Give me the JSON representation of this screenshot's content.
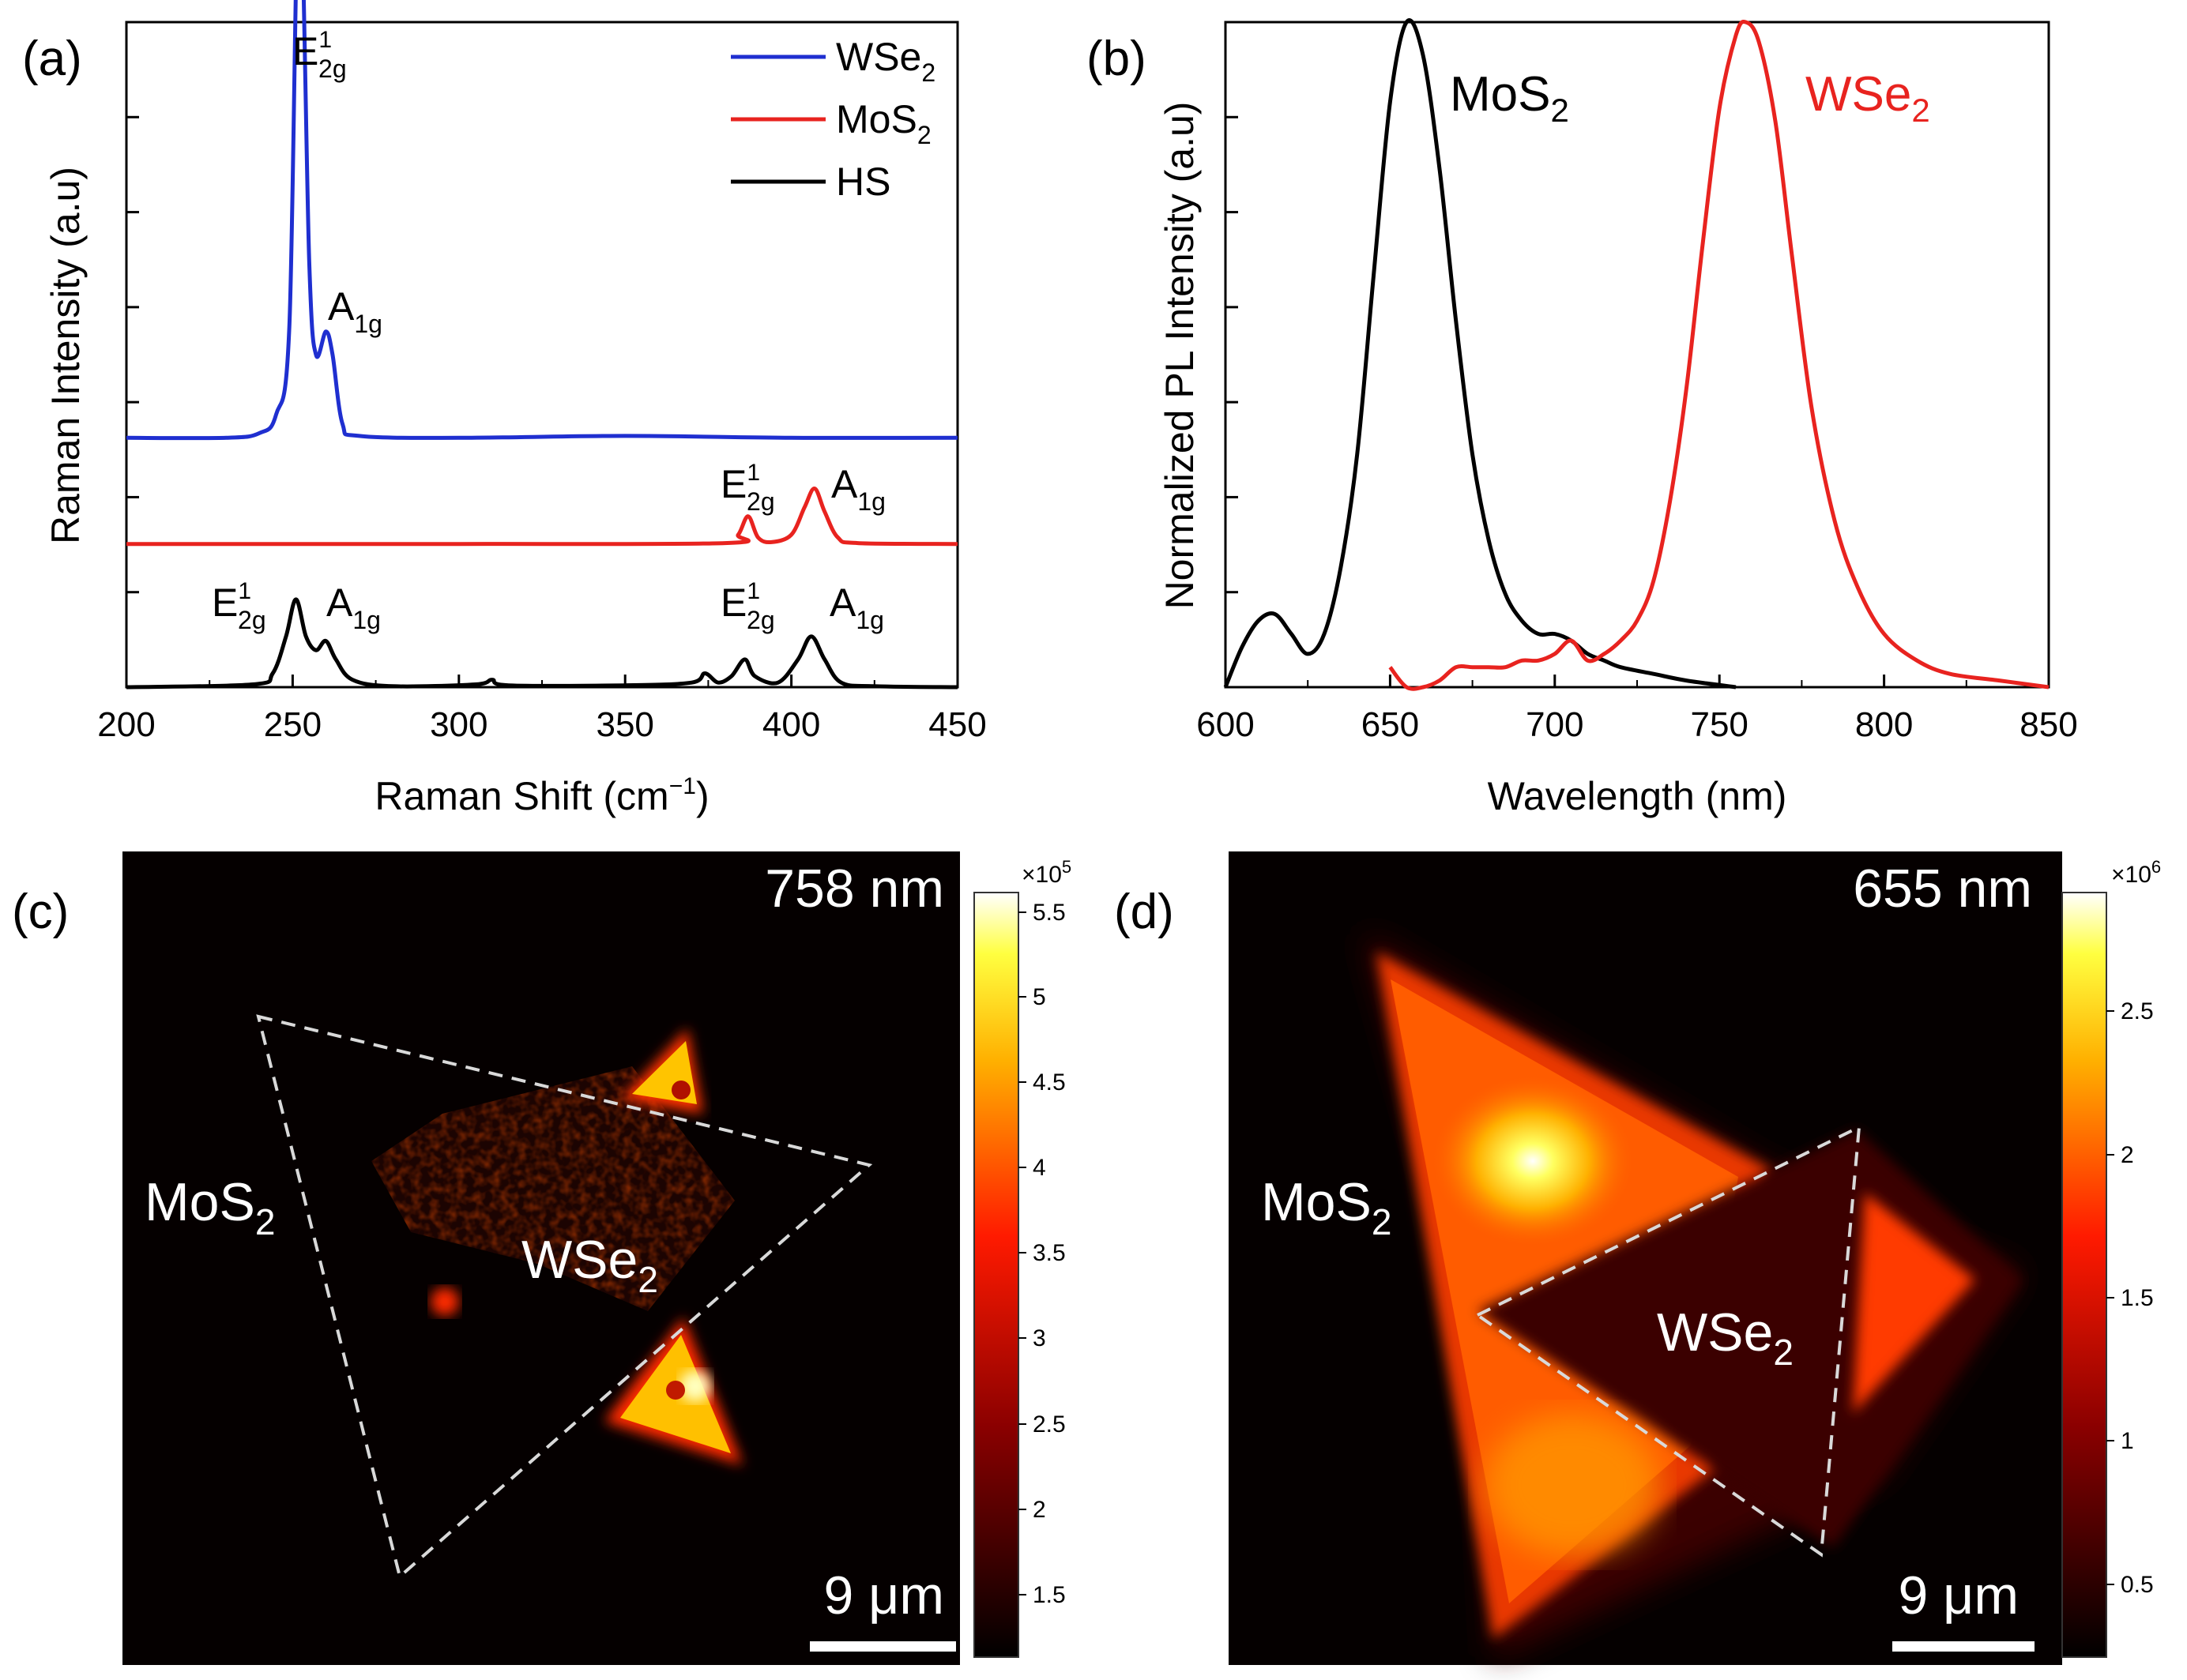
{
  "panels": {
    "a": "(a)",
    "b": "(b)",
    "c": "(c)",
    "d": "(d)"
  },
  "chart_data": [
    {
      "id": "a",
      "type": "line",
      "title": "",
      "xlabel": "Raman Shift (cm",
      "xlabel_sup": "−1",
      "xlabel_end": ")",
      "ylabel": "Raman Intensity (a.u)",
      "xlim": [
        200,
        450
      ],
      "ylim": [
        0,
        7.2
      ],
      "xticks": [
        200,
        250,
        300,
        350,
        400,
        450
      ],
      "series": [
        {
          "name": "WSe",
          "name_sub": "2",
          "color": "#1f2fd0",
          "baseline": 2.7,
          "peaks": [
            [
              252,
              6.1,
              2.2
            ],
            [
              261,
              1.1,
              3.0
            ]
          ],
          "points": [
            [
              200,
              2.7
            ],
            [
              230,
              2.7
            ],
            [
              240,
              2.75
            ],
            [
              245,
              2.95
            ],
            [
              249,
              3.9
            ],
            [
              252,
              8.8
            ],
            [
              255,
              4.6
            ],
            [
              257,
              3.6
            ],
            [
              260,
              3.85
            ],
            [
              262,
              3.6
            ],
            [
              265,
              2.85
            ],
            [
              270,
              2.72
            ],
            [
              300,
              2.7
            ],
            [
              350,
              2.72
            ],
            [
              400,
              2.7
            ],
            [
              450,
              2.7
            ]
          ]
        },
        {
          "name": "MoS",
          "name_sub": "2",
          "color": "#e8231f",
          "baseline": 1.55,
          "points": [
            [
              200,
              1.55
            ],
            [
              300,
              1.55
            ],
            [
              380,
              1.56
            ],
            [
              384,
              1.65
            ],
            [
              387,
              1.85
            ],
            [
              390,
              1.62
            ],
            [
              394,
              1.57
            ],
            [
              400,
              1.65
            ],
            [
              404,
              1.95
            ],
            [
              407,
              2.15
            ],
            [
              410,
              1.9
            ],
            [
              414,
              1.62
            ],
            [
              420,
              1.56
            ],
            [
              450,
              1.55
            ]
          ]
        },
        {
          "name": "HS",
          "color": "#000000",
          "baseline": 0.0,
          "points": [
            [
              200,
              0.0
            ],
            [
              238,
              0.03
            ],
            [
              244,
              0.15
            ],
            [
              248,
              0.55
            ],
            [
              251,
              0.95
            ],
            [
              254,
              0.55
            ],
            [
              257,
              0.4
            ],
            [
              260,
              0.5
            ],
            [
              263,
              0.3
            ],
            [
              268,
              0.08
            ],
            [
              280,
              0.01
            ],
            [
              305,
              0.03
            ],
            [
              310,
              0.08
            ],
            [
              315,
              0.02
            ],
            [
              350,
              0.02
            ],
            [
              370,
              0.05
            ],
            [
              374,
              0.15
            ],
            [
              378,
              0.05
            ],
            [
              382,
              0.12
            ],
            [
              386,
              0.3
            ],
            [
              389,
              0.12
            ],
            [
              396,
              0.05
            ],
            [
              402,
              0.3
            ],
            [
              406,
              0.55
            ],
            [
              410,
              0.3
            ],
            [
              415,
              0.05
            ],
            [
              425,
              0.01
            ],
            [
              450,
              0.0
            ]
          ]
        }
      ],
      "annotations": [
        {
          "text": "E",
          "sub": "2g",
          "sup": "1",
          "x": 252,
          "y": 7.0
        },
        {
          "text": "A",
          "sub": "1g",
          "x": 263,
          "y": 4.2
        },
        {
          "text": "E",
          "sub": "2g",
          "sup": "1",
          "x": 388,
          "y": 2.1
        },
        {
          "text": "A",
          "sub": "1g",
          "x": 410,
          "y": 2.1
        },
        {
          "text": "E",
          "sub": "2g",
          "sup": "1",
          "x": 250,
          "y": 0.85
        },
        {
          "text": "A",
          "sub": "1g",
          "x": 263,
          "y": 0.85
        },
        {
          "text": "E",
          "sub": "2g",
          "sup": "1",
          "x": 388,
          "y": 0.85
        },
        {
          "text": "A",
          "sub": "1g",
          "x": 410,
          "y": 0.85
        }
      ],
      "legend": "top-right"
    },
    {
      "id": "b",
      "type": "line",
      "xlabel": "Wavelength (nm)",
      "ylabel": "Normalized PL Intensity (a.u)",
      "xlim": [
        600,
        850
      ],
      "ylim": [
        0,
        1.0
      ],
      "xticks": [
        600,
        650,
        700,
        750,
        800,
        850
      ],
      "series": [
        {
          "name": "MoS",
          "name_sub": "2",
          "color": "#000000",
          "points": [
            [
              600,
              0.0
            ],
            [
              605,
              0.06
            ],
            [
              610,
              0.1
            ],
            [
              615,
              0.11
            ],
            [
              620,
              0.08
            ],
            [
              625,
              0.05
            ],
            [
              630,
              0.08
            ],
            [
              635,
              0.18
            ],
            [
              640,
              0.35
            ],
            [
              645,
              0.62
            ],
            [
              650,
              0.88
            ],
            [
              655,
              1.0
            ],
            [
              660,
              0.95
            ],
            [
              665,
              0.78
            ],
            [
              670,
              0.55
            ],
            [
              675,
              0.35
            ],
            [
              680,
              0.22
            ],
            [
              685,
              0.14
            ],
            [
              690,
              0.1
            ],
            [
              695,
              0.08
            ],
            [
              700,
              0.08
            ],
            [
              705,
              0.07
            ],
            [
              710,
              0.05
            ],
            [
              715,
              0.04
            ],
            [
              720,
              0.03
            ],
            [
              730,
              0.02
            ],
            [
              740,
              0.01
            ],
            [
              755,
              0.0
            ]
          ]
        },
        {
          "name": "WSe",
          "name_sub": "2",
          "color": "#e8231f",
          "points": [
            [
              650,
              0.03
            ],
            [
              655,
              0.0
            ],
            [
              660,
              0.0
            ],
            [
              665,
              0.01
            ],
            [
              670,
              0.03
            ],
            [
              675,
              0.03
            ],
            [
              680,
              0.03
            ],
            [
              685,
              0.03
            ],
            [
              690,
              0.04
            ],
            [
              695,
              0.04
            ],
            [
              700,
              0.05
            ],
            [
              705,
              0.07
            ],
            [
              710,
              0.04
            ],
            [
              715,
              0.05
            ],
            [
              720,
              0.07
            ],
            [
              725,
              0.1
            ],
            [
              730,
              0.16
            ],
            [
              735,
              0.28
            ],
            [
              740,
              0.45
            ],
            [
              745,
              0.67
            ],
            [
              750,
              0.87
            ],
            [
              755,
              0.98
            ],
            [
              758,
              1.0
            ],
            [
              762,
              0.97
            ],
            [
              767,
              0.85
            ],
            [
              772,
              0.65
            ],
            [
              778,
              0.42
            ],
            [
              785,
              0.25
            ],
            [
              792,
              0.15
            ],
            [
              800,
              0.08
            ],
            [
              810,
              0.04
            ],
            [
              820,
              0.02
            ],
            [
              835,
              0.01
            ],
            [
              850,
              0.0
            ]
          ]
        }
      ]
    },
    {
      "id": "c",
      "type": "heatmap",
      "label": "758 nm",
      "scalebar": "9 μm",
      "colorbar_multiplier": "×10",
      "colorbar_exp": "5",
      "colorbar_ticks": [
        "5.5",
        "5",
        "4.5",
        "4",
        "3.5",
        "3",
        "2.5",
        "2",
        "1.5"
      ],
      "regions": [
        {
          "text": "MoS",
          "sub": "2"
        },
        {
          "text": "WSe",
          "sub": "2"
        }
      ]
    },
    {
      "id": "d",
      "type": "heatmap",
      "label": "655 nm",
      "scalebar": "9 μm",
      "colorbar_multiplier": "×10",
      "colorbar_exp": "6",
      "colorbar_ticks": [
        "2.5",
        "2",
        "1.5",
        "1",
        "0.5"
      ],
      "regions": [
        {
          "text": "MoS",
          "sub": "2"
        },
        {
          "text": "WSe",
          "sub": "2"
        }
      ]
    }
  ]
}
